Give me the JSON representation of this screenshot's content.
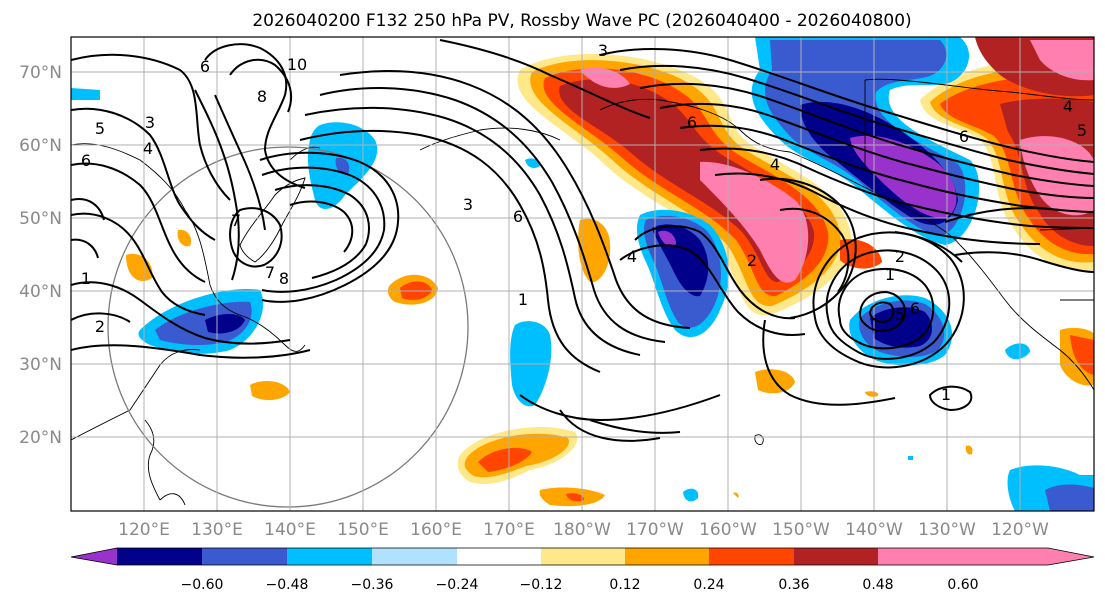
{
  "title": "2026040200 F132 250 hPa PV, Rossby Wave PC (2026040400 - 2026040800)",
  "lat_labels": [
    "70°N",
    "60°N",
    "50°N",
    "40°N",
    "30°N",
    "20°N"
  ],
  "lon_labels": [
    "120°E",
    "130°E",
    "140°E",
    "150°E",
    "160°E",
    "170°E",
    "180°W",
    "170°W",
    "160°W",
    "150°W",
    "140°W",
    "130°W",
    "120°W"
  ],
  "colorbar": {
    "tick_labels": [
      "−0.60",
      "−0.48",
      "−0.36",
      "−0.24",
      "−0.12",
      "0.12",
      "0.24",
      "0.36",
      "0.48",
      "0.60"
    ],
    "colors": [
      "#9932cc",
      "#00008b",
      "#3a5bd0",
      "#00bfff",
      "#b0e2ff",
      "#ffffff",
      "#ffe88a",
      "#ffa500",
      "#ff4500",
      "#b22222",
      "#ff7faf"
    ]
  },
  "contour_labels": [
    "3",
    "6",
    "10",
    "8",
    "5",
    "3",
    "4",
    "6",
    "7",
    "7",
    "8",
    "1",
    "2",
    "3",
    "6",
    "4",
    "1",
    "2",
    "6",
    "4",
    "6",
    "5",
    "4",
    "2",
    "1",
    "5",
    "6",
    "1"
  ]
}
